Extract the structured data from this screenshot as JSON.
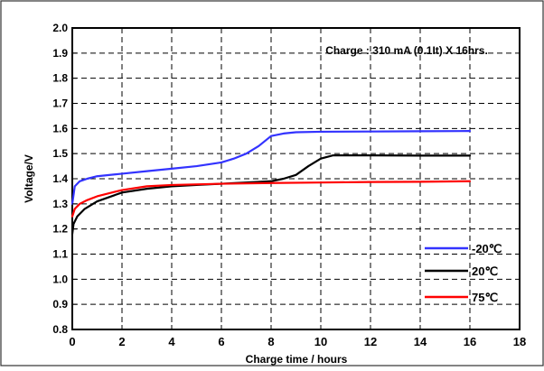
{
  "chart_data": {
    "type": "line",
    "annotation": "Charge : 310 mA  (0.1It)  X 16hrs.",
    "xlabel": "Charge time / hours",
    "ylabel": "Voltage/V",
    "xlim": [
      0,
      18
    ],
    "ylim": [
      0.8,
      2.0
    ],
    "x_ticks": [
      "0",
      "2",
      "4",
      "6",
      "8",
      "10",
      "12",
      "14",
      "16",
      "18"
    ],
    "y_ticks": [
      "0.8",
      "0.9",
      "1.0",
      "1.1",
      "1.2",
      "1.3",
      "1.4",
      "1.5",
      "1.6",
      "1.7",
      "1.8",
      "1.9",
      "2.0"
    ],
    "grid": true,
    "legend_position": "bottom-right",
    "series": [
      {
        "name": "-20℃",
        "color": "#3333ff",
        "x": [
          0,
          0.1,
          0.3,
          0.6,
          1,
          2,
          3,
          4,
          5,
          6,
          6.5,
          7,
          7.5,
          8,
          8.5,
          9,
          10,
          12,
          14,
          16
        ],
        "y": [
          1.3,
          1.37,
          1.39,
          1.4,
          1.41,
          1.42,
          1.43,
          1.44,
          1.45,
          1.465,
          1.48,
          1.5,
          1.53,
          1.57,
          1.58,
          1.585,
          1.587,
          1.588,
          1.589,
          1.59
        ]
      },
      {
        "name": "20℃",
        "color": "#000000",
        "x": [
          0,
          0.05,
          0.2,
          0.5,
          1,
          2,
          3,
          4,
          5,
          6,
          7,
          8,
          8.5,
          9,
          9.5,
          10,
          10.5,
          12,
          14,
          16
        ],
        "y": [
          1.18,
          1.22,
          1.25,
          1.28,
          1.31,
          1.345,
          1.36,
          1.37,
          1.375,
          1.38,
          1.385,
          1.39,
          1.4,
          1.415,
          1.45,
          1.48,
          1.493,
          1.493,
          1.492,
          1.492
        ]
      },
      {
        "name": "75℃",
        "color": "#ff0000",
        "x": [
          0,
          0.1,
          0.3,
          0.6,
          1,
          2,
          3,
          4,
          6,
          8,
          10,
          12,
          14,
          16
        ],
        "y": [
          1.25,
          1.28,
          1.3,
          1.315,
          1.33,
          1.355,
          1.37,
          1.375,
          1.38,
          1.383,
          1.385,
          1.387,
          1.388,
          1.39
        ]
      }
    ]
  }
}
